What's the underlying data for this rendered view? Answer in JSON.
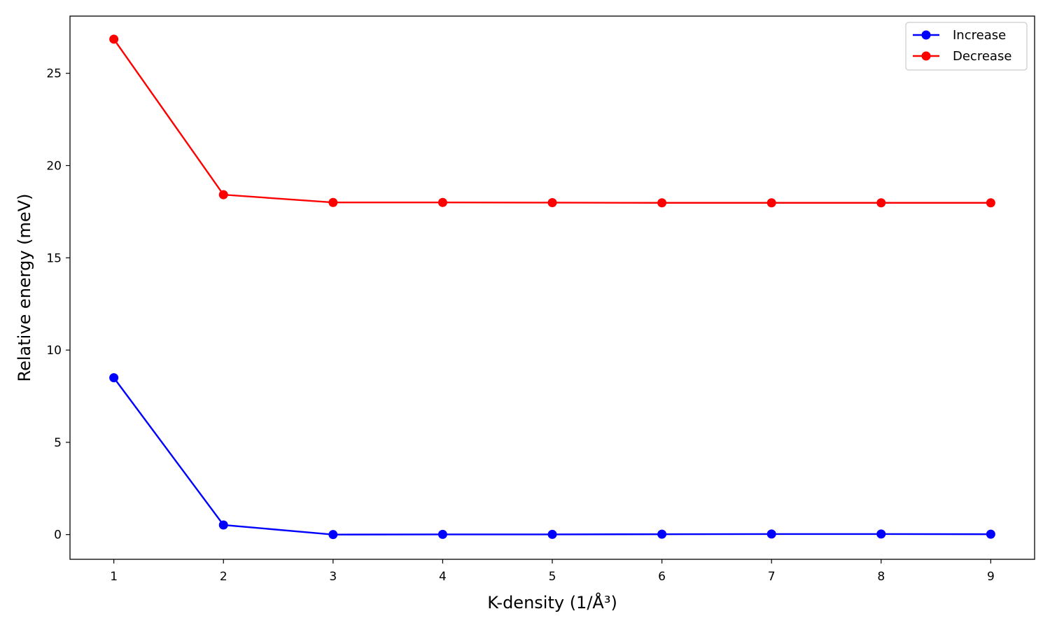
{
  "chart_data": {
    "type": "line",
    "title": "",
    "xlabel": "K-density (1/Å³)",
    "ylabel": "Relative energy (meV)",
    "x": [
      1,
      2,
      3,
      4,
      5,
      6,
      7,
      8,
      9
    ],
    "xlim": [
      0.6,
      9.4
    ],
    "ylim": [
      -1.34,
      28.1
    ],
    "xticks": [
      1,
      2,
      3,
      4,
      5,
      6,
      7,
      8,
      9
    ],
    "yticks": [
      0,
      5,
      10,
      15,
      20,
      25
    ],
    "grid": false,
    "legend_position": "top-right",
    "series": [
      {
        "name": "Increase",
        "color": "#0000ff",
        "marker": "circle",
        "values": [
          8.5,
          0.52,
          0.0,
          0.01,
          0.01,
          0.02,
          0.03,
          0.03,
          0.02
        ]
      },
      {
        "name": "Decrease",
        "color": "#ff0000",
        "marker": "circle",
        "values": [
          26.85,
          18.42,
          18.0,
          18.0,
          17.99,
          17.98,
          17.98,
          17.98,
          17.98
        ]
      }
    ]
  }
}
